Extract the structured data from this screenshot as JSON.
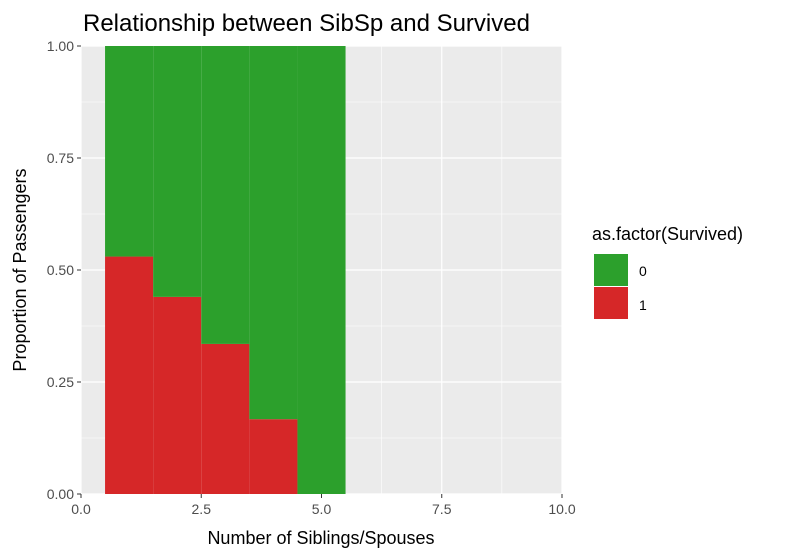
{
  "chart_data": {
    "type": "bar",
    "title": "Relationship between SibSp and Survived",
    "xlabel": "Number of Siblings/Spouses",
    "ylabel": "Proportion of Passengers",
    "xlim": [
      0,
      10
    ],
    "ylim": [
      0,
      1
    ],
    "x_ticks": [
      "0.0",
      "2.5",
      "5.0",
      "7.5",
      "10.0"
    ],
    "y_ticks": [
      "0.00",
      "0.25",
      "0.50",
      "0.75",
      "1.00"
    ],
    "categories": [
      1,
      2,
      3,
      4,
      5
    ],
    "stacked": true,
    "position": "fill",
    "grid": true,
    "legend_position": "right",
    "legend_title": "as.factor(Survived)",
    "series": [
      {
        "name": "0",
        "color": "#2CA02C",
        "values": [
          0.47,
          0.56,
          0.665,
          0.833,
          1.0
        ]
      },
      {
        "name": "1",
        "color": "#D62728",
        "values": [
          0.53,
          0.44,
          0.335,
          0.167,
          0.0
        ]
      }
    ]
  }
}
